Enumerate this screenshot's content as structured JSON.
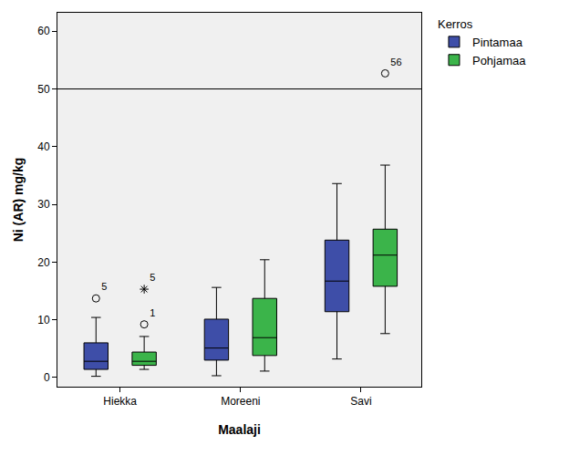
{
  "chart_data": {
    "type": "box",
    "x_label": "Maalaji",
    "y_label": "Ni (AR) mg/kg",
    "legend_title": "Kerros",
    "legend": "right",
    "grid": false,
    "categories": [
      "Hiekka",
      "Moreeni",
      "Savi"
    ],
    "ylim": [
      -1.6,
      63.2
    ],
    "yticks": [
      0,
      10,
      20,
      30,
      40,
      50,
      60
    ],
    "reference_line": 50,
    "series": [
      {
        "name": "Pintamaa",
        "color": "#3e4ea8",
        "lower_whisker": [
          0.2,
          0.3,
          3.2
        ],
        "q1": [
          1.4,
          3.0,
          11.4
        ],
        "median": [
          2.8,
          5.1,
          16.7
        ],
        "q3": [
          6.0,
          10.1,
          23.8
        ],
        "upper_whisker": [
          10.4,
          15.6,
          33.6
        ],
        "outliers": [
          {
            "category": "Hiekka",
            "value": 13.7,
            "label": "5",
            "marker": "circle"
          }
        ]
      },
      {
        "name": "Pohjamaa",
        "color": "#3bb44a",
        "lower_whisker": [
          1.4,
          1.1,
          7.6
        ],
        "q1": [
          2.1,
          3.8,
          15.8
        ],
        "median": [
          2.8,
          6.9,
          21.2
        ],
        "q3": [
          4.4,
          13.7,
          25.7
        ],
        "upper_whisker": [
          7.1,
          20.4,
          36.8
        ],
        "outliers": [
          {
            "category": "Hiekka",
            "value": 9.2,
            "label": "1",
            "marker": "circle"
          },
          {
            "category": "Hiekka",
            "value": 15.3,
            "label": "5",
            "marker": "star"
          },
          {
            "category": "Savi",
            "value": 52.7,
            "label": "56",
            "marker": "circle"
          }
        ]
      }
    ]
  }
}
